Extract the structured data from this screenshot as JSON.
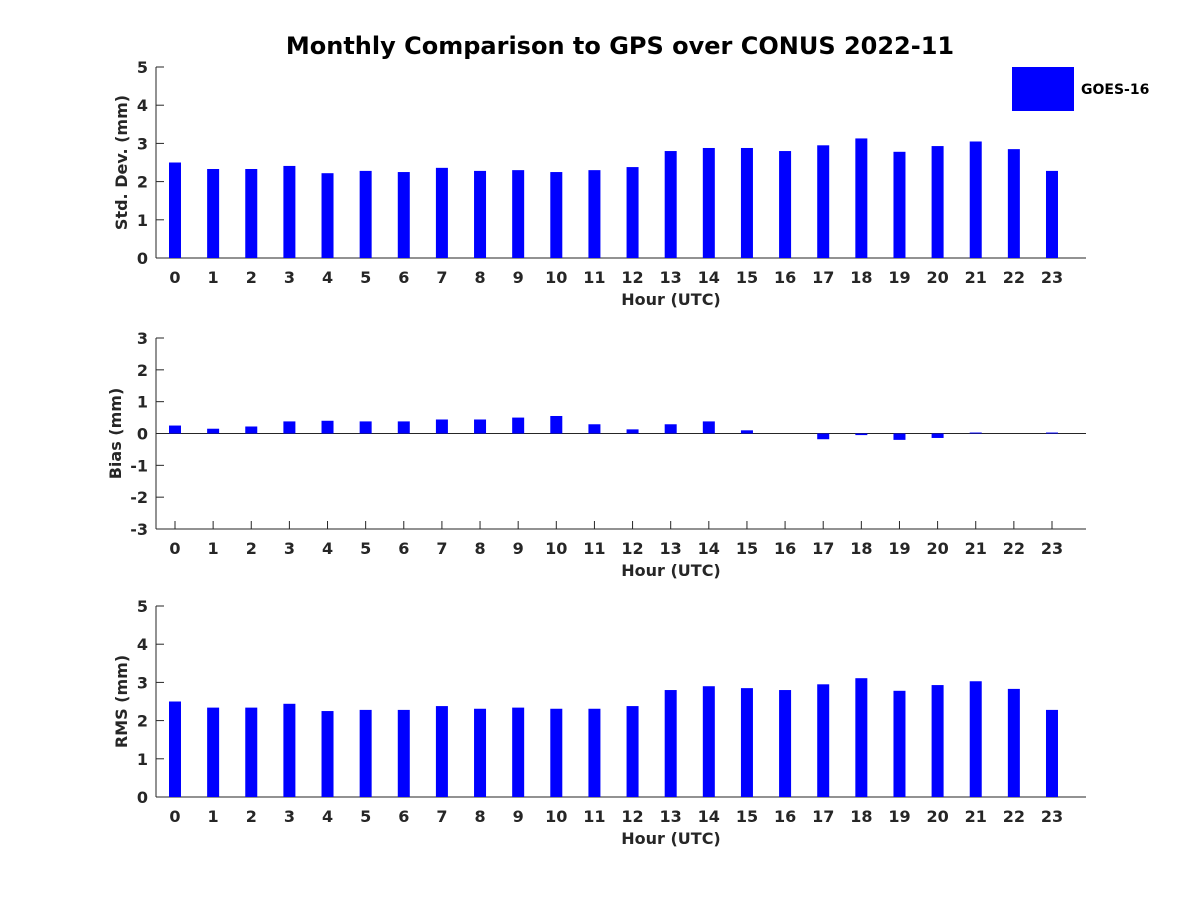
{
  "figure_title": "Monthly Comparison to GPS over CONUS 2022-11",
  "legend": {
    "label": "GOES-16",
    "color": "#0000ff"
  },
  "bar_color": "#0000ff",
  "chart_data": [
    {
      "type": "bar",
      "title": "",
      "xlabel": "Hour (UTC)",
      "ylabel": "Std. Dev. (mm)",
      "ylim": [
        0,
        5
      ],
      "yticks": [
        0,
        1,
        2,
        3,
        4,
        5
      ],
      "categories": [
        "0",
        "1",
        "2",
        "3",
        "4",
        "5",
        "6",
        "7",
        "8",
        "9",
        "10",
        "11",
        "12",
        "13",
        "14",
        "15",
        "16",
        "17",
        "18",
        "19",
        "20",
        "21",
        "22",
        "23"
      ],
      "series": [
        {
          "name": "GOES-16",
          "values": [
            2.5,
            2.33,
            2.33,
            2.41,
            2.22,
            2.28,
            2.25,
            2.36,
            2.28,
            2.3,
            2.25,
            2.3,
            2.38,
            2.8,
            2.88,
            2.88,
            2.8,
            2.95,
            3.13,
            2.78,
            2.93,
            3.05,
            2.85,
            2.28
          ]
        }
      ]
    },
    {
      "type": "bar",
      "title": "",
      "xlabel": "Hour (UTC)",
      "ylabel": "Bias (mm)",
      "ylim": [
        -3,
        3
      ],
      "yticks": [
        -3,
        -2,
        -1,
        0,
        1,
        2,
        3
      ],
      "categories": [
        "0",
        "1",
        "2",
        "3",
        "4",
        "5",
        "6",
        "7",
        "8",
        "9",
        "10",
        "11",
        "12",
        "13",
        "14",
        "15",
        "16",
        "17",
        "18",
        "19",
        "20",
        "21",
        "22",
        "23"
      ],
      "series": [
        {
          "name": "GOES-16",
          "values": [
            0.25,
            0.15,
            0.22,
            0.38,
            0.4,
            0.38,
            0.38,
            0.44,
            0.44,
            0.5,
            0.55,
            0.29,
            0.13,
            0.29,
            0.38,
            0.1,
            0.0,
            -0.18,
            -0.05,
            -0.2,
            -0.14,
            0.03,
            0.0,
            0.03
          ]
        }
      ]
    },
    {
      "type": "bar",
      "title": "",
      "xlabel": "Hour (UTC)",
      "ylabel": "RMS (mm)",
      "ylim": [
        0,
        5
      ],
      "yticks": [
        0,
        1,
        2,
        3,
        4,
        5
      ],
      "categories": [
        "0",
        "1",
        "2",
        "3",
        "4",
        "5",
        "6",
        "7",
        "8",
        "9",
        "10",
        "11",
        "12",
        "13",
        "14",
        "15",
        "16",
        "17",
        "18",
        "19",
        "20",
        "21",
        "22",
        "23"
      ],
      "series": [
        {
          "name": "GOES-16",
          "values": [
            2.5,
            2.34,
            2.34,
            2.44,
            2.25,
            2.28,
            2.28,
            2.38,
            2.31,
            2.34,
            2.31,
            2.31,
            2.38,
            2.8,
            2.9,
            2.85,
            2.8,
            2.95,
            3.11,
            2.78,
            2.93,
            3.03,
            2.83,
            2.28
          ]
        }
      ]
    }
  ]
}
